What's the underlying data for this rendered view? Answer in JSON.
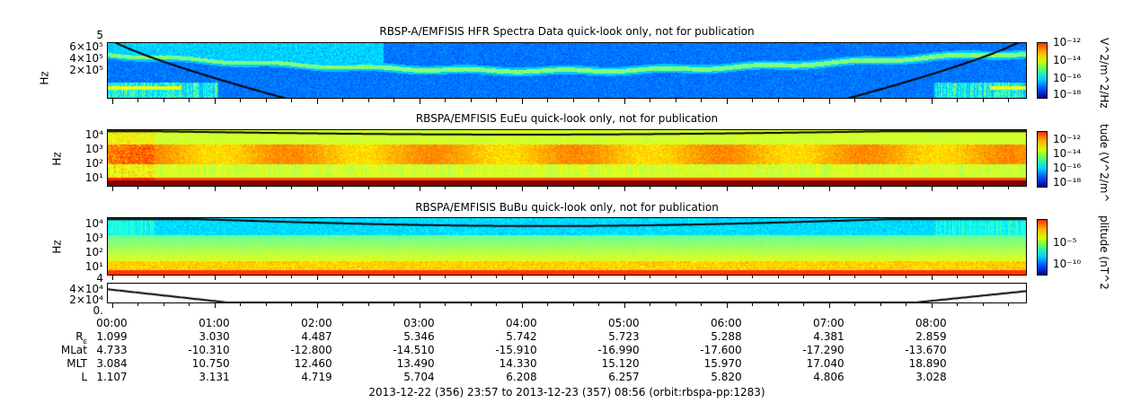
{
  "chart_data": [
    {
      "type": "heatmap",
      "title": "RBSP-A/EMFISIS  HFR Spectra Data quick-look only, not for publication",
      "ylabel": "Hz",
      "yticks": [
        "6×10⁵",
        "4×10⁵",
        "2×10⁵"
      ],
      "ytick_top": "5",
      "colorbar": {
        "label": "V^2/m^2/Hz",
        "ticks": [
          "10⁻¹²",
          "10⁻¹⁴",
          "10⁻¹⁶",
          "10⁻¹⁸"
        ]
      }
    },
    {
      "type": "heatmap",
      "title": "RBSPA/EMFISIS  EuEu quick-look only, not for publication",
      "ylabel": "Hz",
      "yticks": [
        "10⁴",
        "10³",
        "10²",
        "10¹"
      ],
      "colorbar": {
        "label": "tude (V^2/m^",
        "ticks": [
          "10⁻¹²",
          "10⁻¹⁴",
          "10⁻¹⁶",
          "10⁻¹⁸"
        ]
      }
    },
    {
      "type": "heatmap",
      "title": "RBSPA/EMFISIS  BuBu quick-look only, not for publication",
      "ylabel": "Hz",
      "yticks": [
        "10⁴",
        "10³",
        "10²",
        "10¹"
      ],
      "colorbar": {
        "label": "plitude (nT^2",
        "ticks": [
          "10⁻⁵",
          "10⁻¹⁰"
        ]
      }
    },
    {
      "type": "line",
      "yticks": [
        "4×10⁴",
        "2×10⁴",
        "0."
      ],
      "ytick_top": "4"
    }
  ],
  "time_axis": {
    "start_minutes": -3,
    "end_minutes": 536,
    "labels": [
      "00:00",
      "01:00",
      "02:00",
      "03:00",
      "04:00",
      "05:00",
      "06:00",
      "07:00",
      "08:00"
    ]
  },
  "ephemeris": {
    "rows": [
      {
        "label": "R",
        "sub": "E",
        "values": [
          "1.099",
          "3.030",
          "4.487",
          "5.346",
          "5.742",
          "5.723",
          "5.288",
          "4.381",
          "2.859"
        ]
      },
      {
        "label": "MLat",
        "values": [
          "4.733",
          "-10.310",
          "-12.800",
          "-14.510",
          "-15.910",
          "-16.990",
          "-17.600",
          "-17.290",
          "-13.670"
        ]
      },
      {
        "label": "MLT",
        "values": [
          "3.084",
          "10.750",
          "12.460",
          "13.490",
          "14.330",
          "15.120",
          "15.970",
          "17.040",
          "18.890"
        ]
      },
      {
        "label": "L",
        "values": [
          "1.107",
          "3.131",
          "4.719",
          "5.704",
          "6.208",
          "6.257",
          "5.820",
          "4.806",
          "3.028"
        ]
      }
    ]
  },
  "footer": "2013-12-22 (356) 23:57 to 2013-12-23 (357) 08:56 (orbit:rbspa-pp:1283)"
}
